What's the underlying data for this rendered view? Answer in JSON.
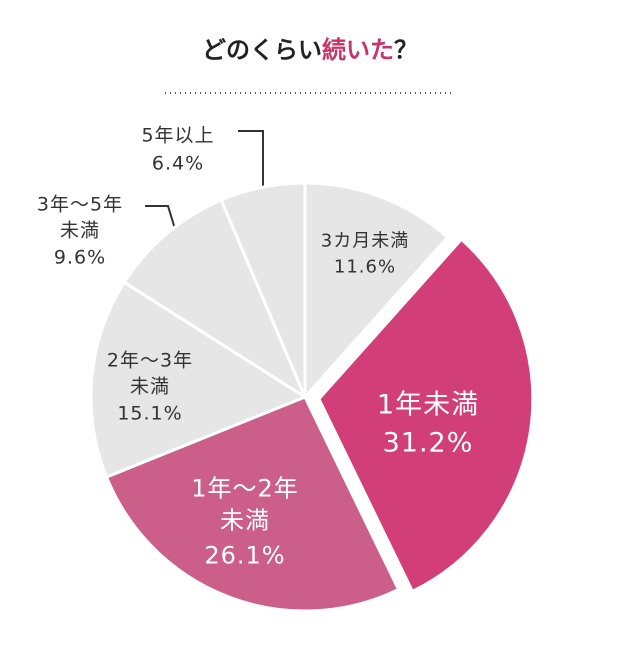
{
  "chart_data": {
    "type": "pie",
    "title": [
      "どのくらい",
      "続いた",
      "？"
    ],
    "categories": [
      "3カ月未満",
      "1年未満",
      "1年〜2年\n未満",
      "2年〜3年\n未満",
      "3年〜5年\n未満",
      "5年以上"
    ],
    "values": [
      11.6,
      31.2,
      26.1,
      15.1,
      9.6,
      6.4
    ],
    "value_labels": [
      "11.6%",
      "31.2%",
      "26.1%",
      "15.1%",
      "9.6%",
      "6.4%"
    ],
    "colors": [
      "#e6e6e6",
      "#d23f78",
      "#cc5f8a",
      "#e6e6e6",
      "#e6e6e6",
      "#e6e6e6"
    ],
    "start_angle": 90,
    "direction": "clockwise"
  }
}
